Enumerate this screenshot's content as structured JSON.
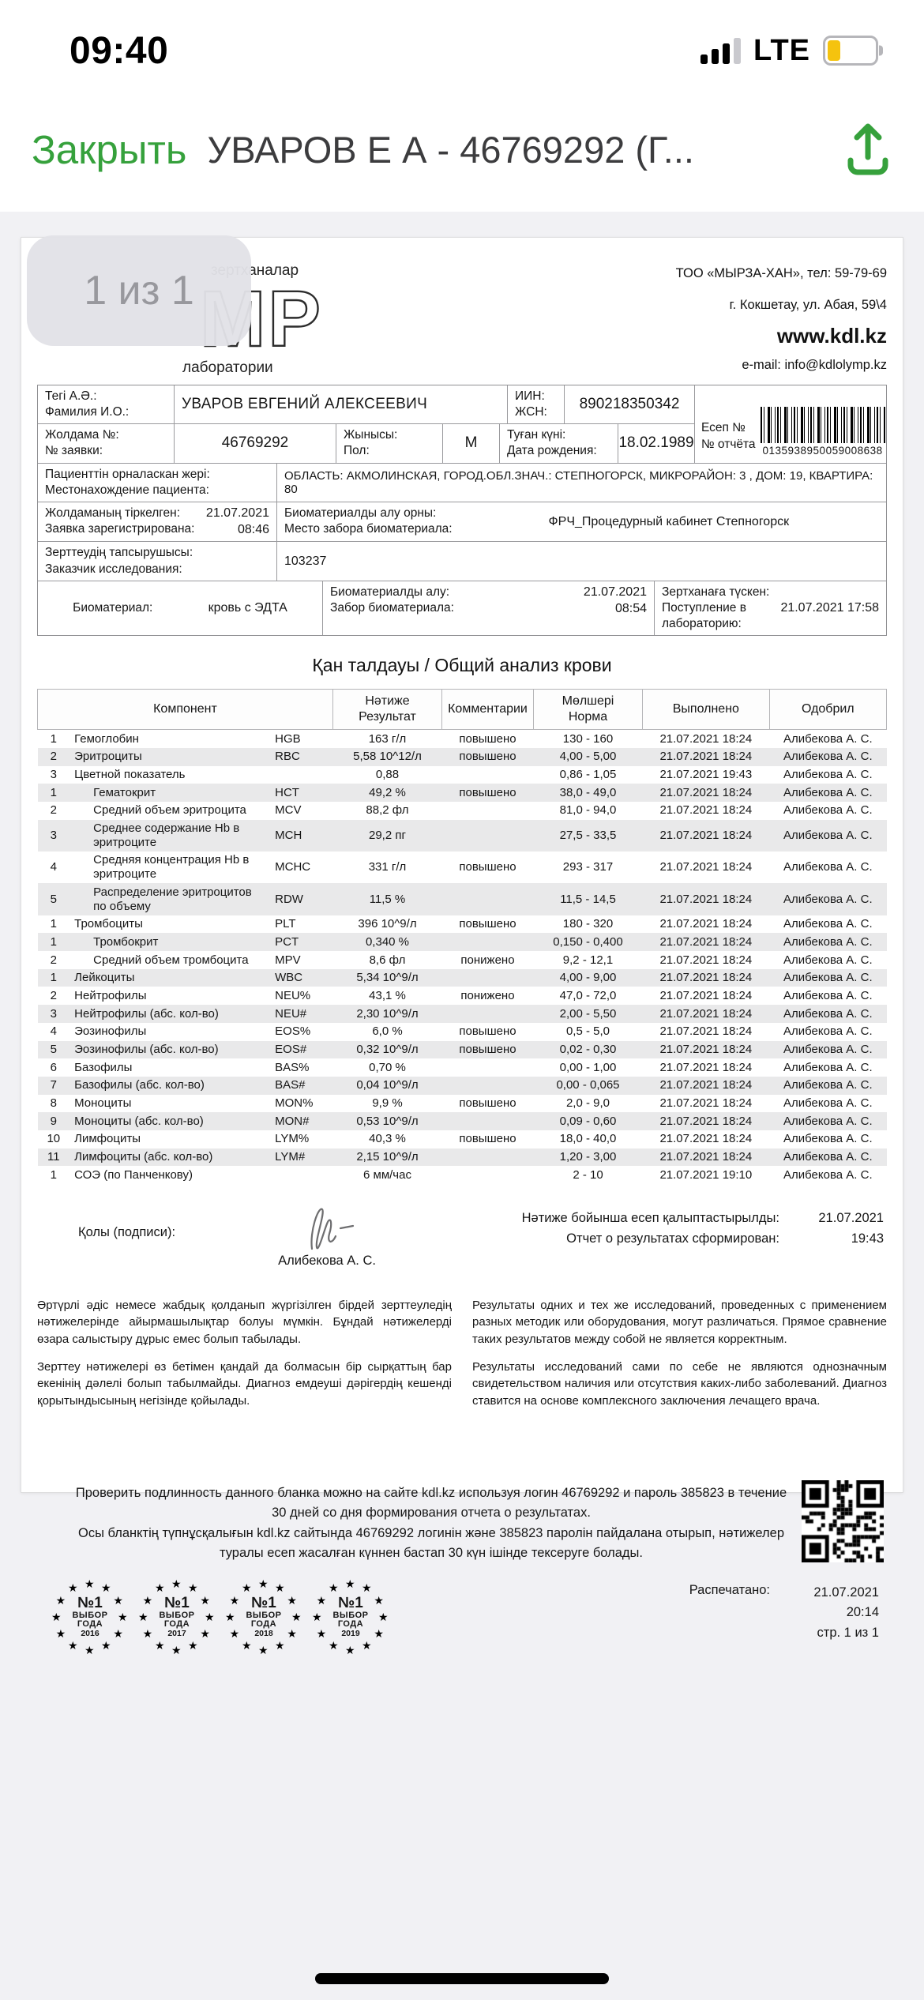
{
  "accent_color": "#36A13C",
  "status_bar": {
    "time": "09:40",
    "network": "LTE",
    "battery_color": "#F5C30E"
  },
  "nav": {
    "close_label": "Закрыть",
    "title": "УВАРОВ Е А - 46769292 (Г..."
  },
  "viewer": {
    "page_indicator": "1 из 1"
  },
  "doc": {
    "logo": {
      "top": "зертханалар",
      "letters": "МР",
      "bottom": "лаборатории"
    },
    "org": {
      "line1": "ТОО «МЫРЗА-ХАН», тел: 59-79-69",
      "line2": "г. Кокшетау, ул. Абая, 59\\4",
      "site": "www.kdl.kz",
      "email": "e-mail: info@kdlolymp.kz"
    },
    "patient": {
      "surname_kk": "Тегі А.Ә.:",
      "surname_ru": "Фамилия И.О.:",
      "surname_value": "УВАРОВ ЕВГЕНИЙ АЛЕКСЕЕВИЧ",
      "iin_kk": "ИИН:",
      "iin_ru": "ЖСН:",
      "iin_value": "890218350342",
      "report_kk": "Есеп №",
      "report_ru": "№ отчёта",
      "report_number": "0135938950059008638",
      "order_kk": "Жолдама №:",
      "order_ru": "№ заявки:",
      "order_value": "46769292",
      "sex_kk": "Жынысы:",
      "sex_ru": "Пол:",
      "sex_value": "М",
      "birth_kk": "Туған күні:",
      "birth_ru": "Дата рождения:",
      "birth_value": "18.02.1989",
      "location_kk": "Пациенттін орналаскан жері:",
      "location_ru": "Местонахождение пациента:",
      "location_value": "ОБЛАСТЬ: АКМОЛИНСКАЯ, ГОРОД.ОБЛ.ЗНАЧ.: СТЕПНОГОРСК, МИКРОРАЙОН: 3 , ДОМ: 19, КВАРТИРА: 80",
      "registered_kk": "Жолдаманың тіркелген:",
      "registered_ru": "Заявка зарегистрирована:",
      "registered_date": "21.07.2021",
      "registered_time": "08:46",
      "site_kk": "Биоматериалды алу орны:",
      "site_ru": "Место забора биоматериала:",
      "site_value": "ФРЧ_Процедурный кабинет Степногорск",
      "customer_kk": "Зерттеудің тапсырушысы:",
      "customer_ru": "Заказчик исследования:",
      "customer_value": "103237",
      "biomaterial_label": "Биоматериал:",
      "biomaterial_value": "кровь с ЭДТА",
      "sampling_kk": "Биоматериалды алу:",
      "sampling_ru": "Забор биоматериала:",
      "sampling_date": "21.07.2021",
      "sampling_time": "08:54",
      "received_kk": "Зертханаға түскен:",
      "received_ru": "Поступление в лабораторию:",
      "received_value": "21.07.2021 17:58"
    },
    "section_title": "Қан талдауы / Общий анализ крови",
    "results": {
      "col_component": "Компонент",
      "col_result_kk": "Нәтиже",
      "col_result_ru": "Результат",
      "col_comments": "Комментарии",
      "col_norm_kk": "Мөлшері",
      "col_norm_ru": "Норма",
      "col_done": "Выполнено",
      "col_approved": "Одобрил",
      "rows": [
        {
          "num": "1",
          "name": "Гемоглобин",
          "code": "HGB",
          "result": "163 г/л",
          "comment": "повышено",
          "norm": "130 - 160",
          "done": "21.07.2021 18:24",
          "approved": "Алибекова А. С.",
          "ind": false
        },
        {
          "num": "2",
          "name": "Эритроциты",
          "code": "RBC",
          "result": "5,58 10^12/л",
          "comment": "повышено",
          "norm": "4,00 - 5,00",
          "done": "21.07.2021 18:24",
          "approved": "Алибекова А. С.",
          "ind": false
        },
        {
          "num": "3",
          "name": "Цветной показатель",
          "code": "",
          "result": "0,88",
          "comment": "",
          "norm": "0,86 - 1,05",
          "done": "21.07.2021 19:43",
          "approved": "Алибекова А. С.",
          "ind": false
        },
        {
          "num": "1",
          "name": "Гематокрит",
          "code": "HCT",
          "result": "49,2 %",
          "comment": "повышено",
          "norm": "38,0 - 49,0",
          "done": "21.07.2021 18:24",
          "approved": "Алибекова А. С.",
          "ind": true
        },
        {
          "num": "2",
          "name": "Средний объем эритроцита",
          "code": "MCV",
          "result": "88,2 фл",
          "comment": "",
          "norm": "81,0 - 94,0",
          "done": "21.07.2021 18:24",
          "approved": "Алибекова А. С.",
          "ind": true
        },
        {
          "num": "3",
          "name": "Среднее содержание Hb в эритроците",
          "code": "MCH",
          "result": "29,2 пг",
          "comment": "",
          "norm": "27,5 - 33,5",
          "done": "21.07.2021 18:24",
          "approved": "Алибекова А. С.",
          "ind": true
        },
        {
          "num": "4",
          "name": "Средняя концентрация Hb в эритроците",
          "code": "MCHC",
          "result": "331 г/л",
          "comment": "повышено",
          "norm": "293 - 317",
          "done": "21.07.2021 18:24",
          "approved": "Алибекова А. С.",
          "ind": true
        },
        {
          "num": "5",
          "name": "Распределение эритроцитов по объему",
          "code": "RDW",
          "result": "11,5 %",
          "comment": "",
          "norm": "11,5 - 14,5",
          "done": "21.07.2021 18:24",
          "approved": "Алибекова А. С.",
          "ind": true
        },
        {
          "num": "1",
          "name": "Тромбоциты",
          "code": "PLT",
          "result": "396 10^9/л",
          "comment": "повышено",
          "norm": "180 - 320",
          "done": "21.07.2021 18:24",
          "approved": "Алибекова А. С.",
          "ind": false
        },
        {
          "num": "1",
          "name": "Тромбокрит",
          "code": "PCT",
          "result": "0,340 %",
          "comment": "",
          "norm": "0,150 - 0,400",
          "done": "21.07.2021 18:24",
          "approved": "Алибекова А. С.",
          "ind": true
        },
        {
          "num": "2",
          "name": "Средний объем тромбоцита",
          "code": "MPV",
          "result": "8,6 фл",
          "comment": "понижено",
          "norm": "9,2 - 12,1",
          "done": "21.07.2021 18:24",
          "approved": "Алибекова А. С.",
          "ind": true
        },
        {
          "num": "1",
          "name": "Лейкоциты",
          "code": "WBC",
          "result": "5,34 10^9/л",
          "comment": "",
          "norm": "4,00 - 9,00",
          "done": "21.07.2021 18:24",
          "approved": "Алибекова А. С.",
          "ind": false
        },
        {
          "num": "2",
          "name": "Нейтрофилы",
          "code": "NEU%",
          "result": "43,1 %",
          "comment": "понижено",
          "norm": "47,0 - 72,0",
          "done": "21.07.2021 18:24",
          "approved": "Алибекова А. С.",
          "ind": false
        },
        {
          "num": "3",
          "name": "Нейтрофилы (абс. кол-во)",
          "code": "NEU#",
          "result": "2,30 10^9/л",
          "comment": "",
          "norm": "2,00 - 5,50",
          "done": "21.07.2021 18:24",
          "approved": "Алибекова А. С.",
          "ind": false
        },
        {
          "num": "4",
          "name": "Эозинофилы",
          "code": "EOS%",
          "result": "6,0 %",
          "comment": "повышено",
          "norm": "0,5 - 5,0",
          "done": "21.07.2021 18:24",
          "approved": "Алибекова А. С.",
          "ind": false
        },
        {
          "num": "5",
          "name": "Эозинофилы (абс. кол-во)",
          "code": "EOS#",
          "result": "0,32 10^9/л",
          "comment": "повышено",
          "norm": "0,02 - 0,30",
          "done": "21.07.2021 18:24",
          "approved": "Алибекова А. С.",
          "ind": false
        },
        {
          "num": "6",
          "name": "Базофилы",
          "code": "BAS%",
          "result": "0,70 %",
          "comment": "",
          "norm": "0,00 - 1,00",
          "done": "21.07.2021 18:24",
          "approved": "Алибекова А. С.",
          "ind": false
        },
        {
          "num": "7",
          "name": "Базофилы (абс. кол-во)",
          "code": "BAS#",
          "result": "0,04 10^9/л",
          "comment": "",
          "norm": "0,00 - 0,065",
          "done": "21.07.2021 18:24",
          "approved": "Алибекова А. С.",
          "ind": false
        },
        {
          "num": "8",
          "name": "Моноциты",
          "code": "MON%",
          "result": "9,9 %",
          "comment": "повышено",
          "norm": "2,0 - 9,0",
          "done": "21.07.2021 18:24",
          "approved": "Алибекова А. С.",
          "ind": false
        },
        {
          "num": "9",
          "name": "Моноциты (абс. кол-во)",
          "code": "MON#",
          "result": "0,53 10^9/л",
          "comment": "",
          "norm": "0,09 - 0,60",
          "done": "21.07.2021 18:24",
          "approved": "Алибекова А. С.",
          "ind": false
        },
        {
          "num": "10",
          "name": "Лимфоциты",
          "code": "LYM%",
          "result": "40,3 %",
          "comment": "повышено",
          "norm": "18,0 - 40,0",
          "done": "21.07.2021 18:24",
          "approved": "Алибекова А. С.",
          "ind": false
        },
        {
          "num": "11",
          "name": "Лимфоциты (абс. кол-во)",
          "code": "LYM#",
          "result": "2,15 10^9/л",
          "comment": "",
          "norm": "1,20 - 3,00",
          "done": "21.07.2021 18:24",
          "approved": "Алибекова А. С.",
          "ind": false
        },
        {
          "num": "1",
          "name": "СОЭ (по Панченкову)",
          "code": "",
          "result": "6 мм/час",
          "comment": "",
          "norm": "2 - 10",
          "done": "21.07.2021 19:10",
          "approved": "Алибекова А. С.",
          "ind": false
        }
      ]
    },
    "signature": {
      "label": "Қолы (подписи):",
      "name": "Алибекова А. С."
    },
    "formed": {
      "kk": "Нәтиже бойынша есеп қалыптастырылды:",
      "ru": "Отчет о результатах сформирован:",
      "date": "21.07.2021",
      "time": "19:43"
    },
    "disclaimer": {
      "kk1": "Әртүрлі әдіс немесе жабдық қолданып жүргізілген бірдей зерттеуледің нәтижелерінде айырмашылықтар болуы мүмкін. Бұндай нәтижелерді өзара салыстыру дұрыс емес болып табылады.",
      "kk2": "Зерттеу нәтижелері өз бетімен қандай да болмасын бір сырқаттың бар екенінің дәлелі болып табылмайды. Диагноз емдеуші дәрігердің кешенді қорытындысының негізінде қойылады.",
      "ru1": "Результаты одних и тех же исследований, проведенных с применением разных методик или оборудования, могут различаться. Прямое сравнение таких результатов между собой не является корректным.",
      "ru2": "Результаты исследований сами по себе не являются однозначным свидетельством наличия или отсутствия каких-либо заболеваний. Диагноз ставится на основе комплексного заключения лечащего врача."
    },
    "footer": {
      "verify_ru": "Проверить подлинность данного бланка можно на сайте kdl.kz используя логин 46769292 и пароль 385823 в течение 30 дней со дня формирования отчета о результатах.",
      "verify_kk": "Осы бланктің түпнұсқалығын kdl.kz сайтында 46769292 логинін және 385823 паролін пайдалана отырып, нәтижелер туралы есеп жасалған күннен бастап 30 күн ішінде тексеруге болады.",
      "printed_label": "Распечатано:",
      "printed_date": "21.07.2021",
      "printed_time": "20:14",
      "printed_page": "стр. 1 из 1",
      "badge_no": "№1",
      "badge_line1": "ВЫБОР",
      "badge_line2": "ГОДА",
      "badge_years": [
        "2016",
        "2017",
        "2018",
        "2019"
      ],
      "star": "★"
    }
  }
}
